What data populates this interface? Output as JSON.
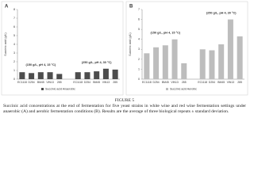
{
  "chart_data": [
    {
      "type": "bar",
      "panel": "A",
      "ylabel": "Succinic acid (g/L)",
      "annotations": [
        "(150 g/L, pH 4, 15 °C)",
        "(250 g/L, pH 4, 30 °C)"
      ],
      "categories": [
        "EC1118",
        "D254",
        "BM45",
        "VIN13",
        "285",
        "EC1118",
        "D254",
        "BM45",
        "VIN13",
        "285"
      ],
      "series": [
        {
          "name": "Succinic acid Anaerobic",
          "color": "#4d4d4d",
          "values": [
            0.8,
            0.7,
            0.8,
            0.8,
            0.6,
            0.8,
            0.8,
            0.9,
            1.2,
            1.1
          ]
        }
      ],
      "ylim": [
        0,
        8
      ],
      "yticks": [
        0,
        1,
        2,
        3,
        4,
        5,
        6,
        7,
        8
      ]
    },
    {
      "type": "bar",
      "panel": "B",
      "ylabel": "Succinic acid (g/L)",
      "annotations": [
        "(150 g/L, pH 4, 15 °C)",
        "(250 g/L, pH 4, 30 °C)"
      ],
      "categories": [
        "EC1118",
        "D254",
        "BM45",
        "VIN13",
        "285",
        "EC1118",
        "D254",
        "BM45",
        "VIN13",
        "285"
      ],
      "series": [
        {
          "name": "Succinic acid Aerobic",
          "color": "#bdbdbd",
          "values": [
            2.6,
            3.2,
            3.4,
            4.0,
            1.6,
            3.0,
            2.9,
            3.5,
            6.0,
            4.3
          ]
        }
      ],
      "ylim": [
        0,
        7
      ],
      "yticks": [
        0,
        1,
        2,
        3,
        4,
        5,
        6,
        7
      ]
    }
  ],
  "figure": {
    "label": "FIGURE 5",
    "caption": "Succinic acid concentrations at the end of fermentation for five yeast strains in white wine and red wine fermentation settings under anaerobic (A) and aerobic fermentation conditions (B). Results are the average of three biological repeats ± standard deviation."
  }
}
